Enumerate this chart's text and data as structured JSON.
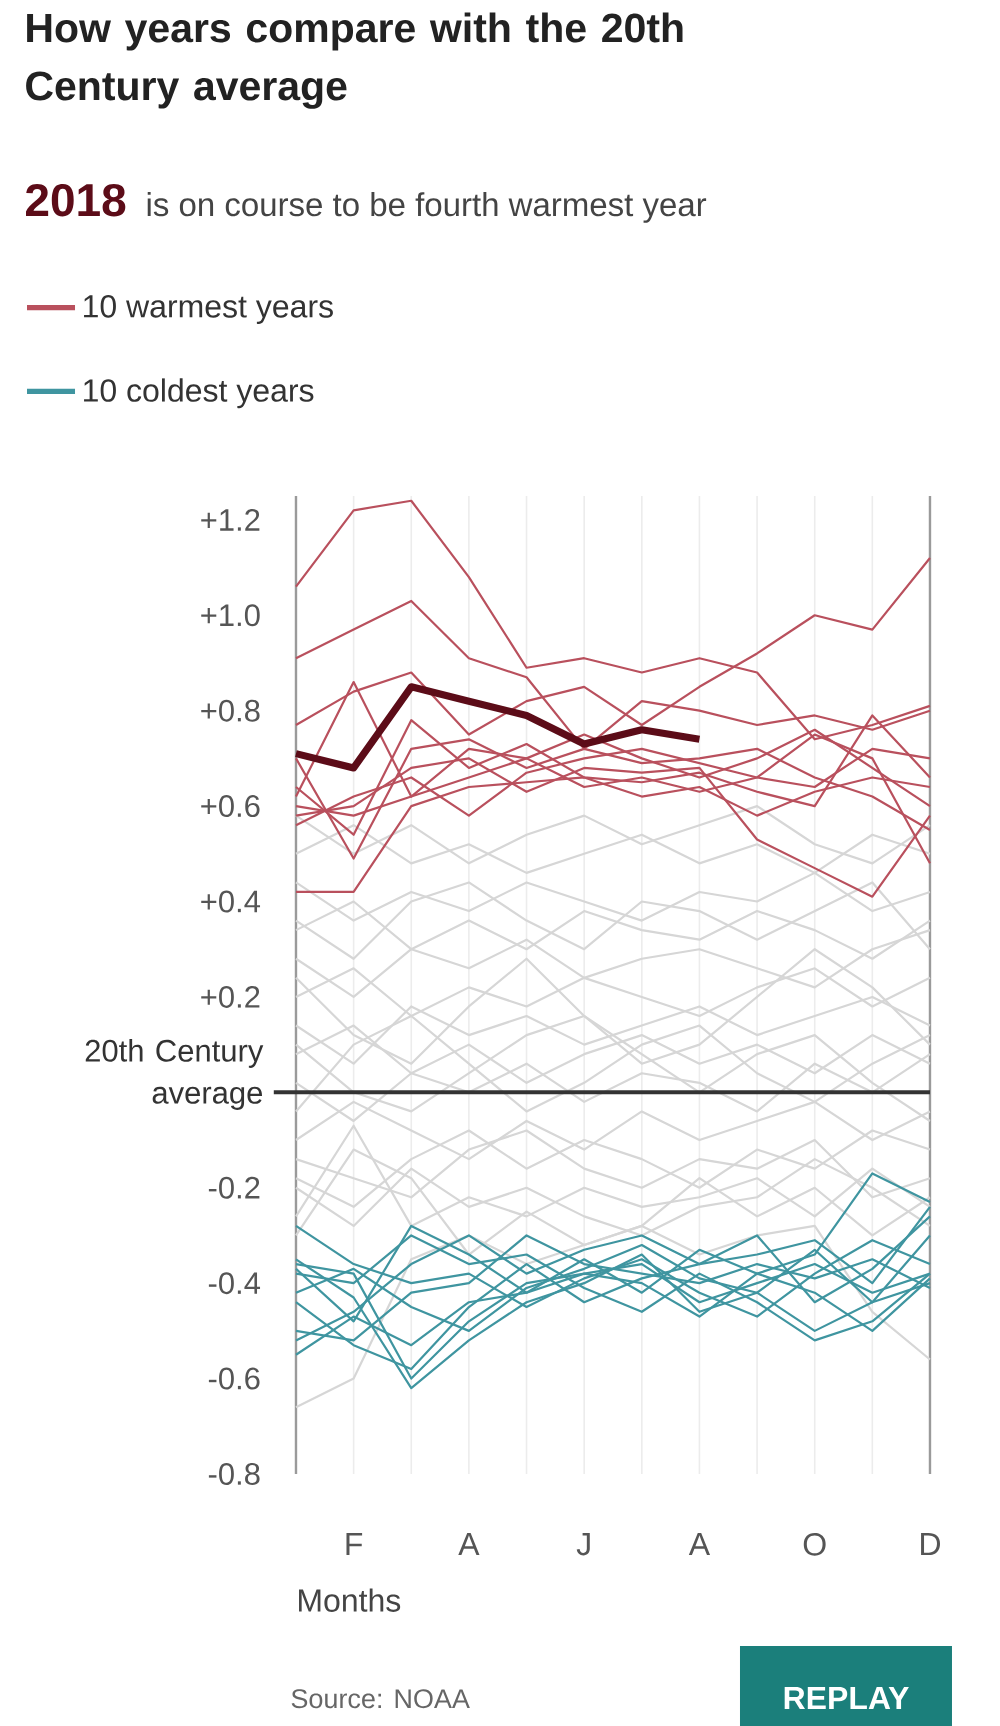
{
  "chart_data": {
    "type": "line",
    "title": "How years compare with the 20th Century average",
    "subtitle": "is on course to be fourth warmest year",
    "xlabel": "Months",
    "categories": [
      null,
      "F",
      null,
      "A",
      null,
      "J",
      null,
      "A",
      null,
      "O",
      null,
      "D"
    ],
    "ylim": [
      -0.8,
      1.25
    ],
    "yticks": [
      {
        "value": 1.2,
        "label": "+1.2"
      },
      {
        "value": 1.0,
        "label": "+1.0"
      },
      {
        "value": 0.8,
        "label": "+0.8"
      },
      {
        "value": 0.6,
        "label": "+0.6"
      },
      {
        "value": 0.4,
        "label": "+0.4"
      },
      {
        "value": 0.2,
        "label": "+0.2"
      },
      -0.2,
      -0.4,
      -0.6,
      -0.8
    ],
    "grid": "x",
    "legend": "top left",
    "line_style": "solid",
    "ref_lines": [
      {
        "axis": "y",
        "value": 0,
        "label": "20th Century average",
        "color": "#333333"
      }
    ],
    "annotations": [
      "Source: NOAA",
      "REPLAY"
    ],
    "series": [
      {
        "color": "#d6d6d6",
        "values": [
          -0.66,
          -0.6,
          -0.35,
          -0.3,
          -0.36,
          -0.32,
          -0.28,
          -0.34,
          -0.3,
          -0.28,
          -0.46,
          -0.56
        ]
      },
      {
        "color": "#d6d6d6",
        "values": [
          -0.26,
          -0.07,
          -0.28,
          -0.22,
          -0.26,
          -0.2,
          -0.24,
          -0.22,
          -0.18,
          -0.26,
          -0.16,
          -0.24
        ]
      },
      {
        "color": "#d6d6d6",
        "values": [
          -0.3,
          -0.12,
          -0.18,
          -0.34,
          -0.25,
          -0.32,
          -0.28,
          -0.18,
          -0.26,
          -0.2,
          -0.3,
          -0.22
        ]
      },
      {
        "color": "#d6d6d6",
        "values": [
          -0.18,
          -0.24,
          -0.14,
          -0.08,
          -0.16,
          -0.1,
          -0.14,
          -0.2,
          -0.12,
          -0.16,
          -0.08,
          -0.12
        ]
      },
      {
        "color": "#d6d6d6",
        "values": [
          -0.1,
          -0.02,
          -0.08,
          -0.14,
          -0.06,
          -0.12,
          -0.04,
          -0.1,
          -0.06,
          -0.02,
          -0.1,
          -0.04
        ]
      },
      {
        "color": "#d6d6d6",
        "values": [
          0.02,
          -0.06,
          0.04,
          0.0,
          0.06,
          -0.02,
          0.04,
          0.02,
          -0.04,
          0.06,
          0.0,
          0.08
        ]
      },
      {
        "color": "#d6d6d6",
        "values": [
          0.08,
          0.14,
          0.04,
          0.1,
          0.02,
          0.08,
          0.12,
          0.06,
          0.1,
          0.04,
          0.12,
          0.06
        ]
      },
      {
        "color": "#d6d6d6",
        "values": [
          0.14,
          0.06,
          0.18,
          0.12,
          0.16,
          0.1,
          0.14,
          0.18,
          0.12,
          0.16,
          0.2,
          0.14
        ]
      },
      {
        "color": "#d6d6d6",
        "values": [
          0.2,
          0.26,
          0.16,
          0.22,
          0.18,
          0.24,
          0.2,
          0.16,
          0.22,
          0.26,
          0.18,
          0.24
        ]
      },
      {
        "color": "#d6d6d6",
        "values": [
          0.28,
          0.2,
          0.3,
          0.26,
          0.32,
          0.24,
          0.28,
          0.3,
          0.26,
          0.22,
          0.3,
          0.34
        ]
      },
      {
        "color": "#d6d6d6",
        "values": [
          0.34,
          0.4,
          0.3,
          0.36,
          0.3,
          0.38,
          0.34,
          0.32,
          0.38,
          0.34,
          0.28,
          0.36
        ]
      },
      {
        "color": "#d6d6d6",
        "values": [
          0.44,
          0.36,
          0.42,
          0.38,
          0.44,
          0.4,
          0.36,
          0.42,
          0.4,
          0.46,
          0.38,
          0.42
        ]
      },
      {
        "color": "#d6d6d6",
        "values": [
          0.5,
          0.56,
          0.48,
          0.52,
          0.46,
          0.5,
          0.54,
          0.48,
          0.52,
          0.46,
          0.54,
          0.5
        ]
      },
      {
        "color": "#d6d6d6",
        "values": [
          -0.04,
          0.1,
          0.16,
          0.06,
          -0.04,
          0.02,
          0.1,
          0.14,
          0.04,
          -0.02,
          0.06,
          0.12
        ]
      },
      {
        "color": "#d6d6d6",
        "values": [
          0.24,
          0.12,
          0.06,
          0.18,
          0.28,
          0.16,
          0.06,
          0.1,
          0.2,
          0.3,
          0.22,
          0.1
        ]
      },
      {
        "color": "#d6d6d6",
        "values": [
          -0.2,
          -0.28,
          -0.16,
          -0.24,
          -0.2,
          -0.26,
          -0.3,
          -0.24,
          -0.22,
          -0.14,
          -0.2,
          -0.28
        ]
      },
      {
        "color": "#d6d6d6",
        "values": [
          0.36,
          0.28,
          0.4,
          0.44,
          0.36,
          0.3,
          0.4,
          0.38,
          0.32,
          0.38,
          0.44,
          0.3
        ]
      },
      {
        "color": "#d6d6d6",
        "values": [
          0.1,
          0.0,
          -0.04,
          0.04,
          0.12,
          0.16,
          0.08,
          0.0,
          0.08,
          0.12,
          0.02,
          -0.06
        ]
      },
      {
        "color": "#d6d6d6",
        "values": [
          -0.14,
          -0.18,
          -0.22,
          -0.12,
          -0.08,
          -0.16,
          -0.2,
          -0.14,
          -0.16,
          -0.1,
          -0.22,
          -0.18
        ]
      },
      {
        "color": "#d6d6d6",
        "values": [
          0.58,
          0.5,
          0.56,
          0.48,
          0.54,
          0.58,
          0.52,
          0.56,
          0.6,
          0.52,
          0.48,
          0.56
        ]
      },
      {
        "name": "10 warmest years",
        "color": "#b9505d",
        "values": [
          1.06,
          1.22,
          1.24,
          1.08,
          0.89,
          0.91,
          0.88,
          0.91,
          0.88,
          0.74,
          0.77,
          0.81
        ]
      },
      {
        "color": "#b9505d",
        "values": [
          0.91,
          0.97,
          1.03,
          0.91,
          0.87,
          0.72,
          0.82,
          0.8,
          0.77,
          0.79,
          0.76,
          0.8
        ]
      },
      {
        "color": "#b9505d",
        "values": [
          0.77,
          0.84,
          0.88,
          0.75,
          0.82,
          0.85,
          0.77,
          0.85,
          0.92,
          1.0,
          0.97,
          1.12
        ]
      },
      {
        "color": "#b9505d",
        "values": [
          0.62,
          0.86,
          0.62,
          0.72,
          0.7,
          0.75,
          0.7,
          0.66,
          0.7,
          0.76,
          0.68,
          0.6
        ]
      },
      {
        "color": "#b9505d",
        "values": [
          0.7,
          0.49,
          0.72,
          0.74,
          0.68,
          0.72,
          0.69,
          0.7,
          0.72,
          0.66,
          0.62,
          0.55
        ]
      },
      {
        "color": "#b9505d",
        "values": [
          0.42,
          0.42,
          0.6,
          0.64,
          0.65,
          0.66,
          0.62,
          0.64,
          0.58,
          0.63,
          0.66,
          0.64
        ]
      },
      {
        "color": "#b9505d",
        "values": [
          0.58,
          0.6,
          0.68,
          0.7,
          0.63,
          0.68,
          0.67,
          0.68,
          0.53,
          0.47,
          0.41,
          0.58
        ]
      },
      {
        "color": "#b9505d",
        "values": [
          0.6,
          0.58,
          0.62,
          0.66,
          0.7,
          0.64,
          0.66,
          0.63,
          0.66,
          0.75,
          0.7,
          0.48
        ]
      },
      {
        "color": "#b9505d",
        "values": [
          0.56,
          0.62,
          0.66,
          0.58,
          0.67,
          0.7,
          0.72,
          0.69,
          0.66,
          0.64,
          0.72,
          0.7
        ]
      },
      {
        "color": "#b9505d",
        "values": [
          0.64,
          0.54,
          0.78,
          0.68,
          0.73,
          0.66,
          0.65,
          0.67,
          0.63,
          0.6,
          0.79,
          0.66
        ]
      },
      {
        "name": "10 coldest years",
        "color": "#3f95a0",
        "values": [
          -0.36,
          -0.38,
          -0.6,
          -0.48,
          -0.4,
          -0.38,
          -0.36,
          -0.44,
          -0.4,
          -0.36,
          -0.42,
          -0.38
        ]
      },
      {
        "color": "#3f95a0",
        "values": [
          -0.35,
          -0.43,
          -0.62,
          -0.52,
          -0.44,
          -0.4,
          -0.34,
          -0.46,
          -0.42,
          -0.5,
          -0.44,
          -0.4
        ]
      },
      {
        "color": "#3f95a0",
        "values": [
          -0.52,
          -0.46,
          -0.36,
          -0.3,
          -0.38,
          -0.33,
          -0.3,
          -0.36,
          -0.34,
          -0.31,
          -0.4,
          -0.24
        ]
      },
      {
        "color": "#3f95a0",
        "values": [
          -0.55,
          -0.47,
          -0.53,
          -0.44,
          -0.42,
          -0.38,
          -0.4,
          -0.47,
          -0.38,
          -0.34,
          -0.17,
          -0.23
        ]
      },
      {
        "color": "#3f95a0",
        "values": [
          -0.38,
          -0.4,
          -0.3,
          -0.36,
          -0.34,
          -0.41,
          -0.46,
          -0.38,
          -0.44,
          -0.52,
          -0.48,
          -0.38
        ]
      },
      {
        "color": "#3f95a0",
        "values": [
          -0.5,
          -0.52,
          -0.42,
          -0.4,
          -0.3,
          -0.36,
          -0.38,
          -0.4,
          -0.36,
          -0.39,
          -0.35,
          -0.41
        ]
      },
      {
        "color": "#3f95a0",
        "values": [
          -0.37,
          -0.48,
          -0.28,
          -0.34,
          -0.42,
          -0.35,
          -0.42,
          -0.33,
          -0.38,
          -0.42,
          -0.5,
          -0.39
        ]
      },
      {
        "color": "#3f95a0",
        "values": [
          -0.44,
          -0.53,
          -0.58,
          -0.45,
          -0.36,
          -0.44,
          -0.39,
          -0.36,
          -0.3,
          -0.44,
          -0.37,
          -0.26
        ]
      },
      {
        "color": "#3f95a0",
        "values": [
          -0.28,
          -0.36,
          -0.4,
          -0.38,
          -0.45,
          -0.39,
          -0.35,
          -0.42,
          -0.47,
          -0.38,
          -0.31,
          -0.36
        ]
      },
      {
        "color": "#3f95a0",
        "values": [
          -0.42,
          -0.37,
          -0.45,
          -0.5,
          -0.41,
          -0.37,
          -0.32,
          -0.39,
          -0.42,
          -0.33,
          -0.44,
          -0.3
        ]
      },
      {
        "name": "2018",
        "color": "#5c0c18",
        "values": [
          0.71,
          0.68,
          0.85,
          0.82,
          0.79,
          0.73,
          0.76,
          0.74,
          null,
          null,
          null,
          null
        ]
      }
    ]
  }
}
